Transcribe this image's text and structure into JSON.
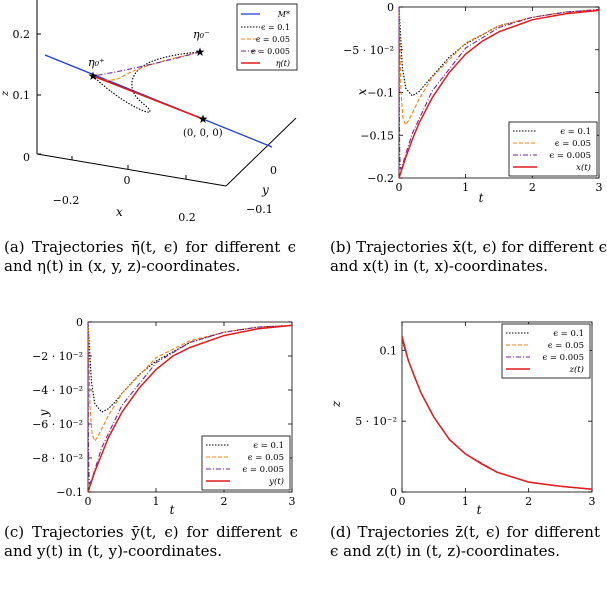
{
  "panels": {
    "a": {
      "caption": "(a) Trajectories η̄(t, ϵ) for different ϵ and η(t) in (x, y, z)-coordinates.",
      "labels": {
        "z": "z",
        "x": "x",
        "y": "y",
        "z_ticks": [
          "0",
          "0.1",
          "0.2"
        ],
        "x_ticks": [
          "−0.2",
          "0",
          "0.2"
        ],
        "y_ticks": [
          "0",
          "−0.1"
        ],
        "eta_plus": "η₀⁺",
        "eta_minus": "η₀⁻",
        "origin": "(0, 0, 0)"
      },
      "legend": [
        "M*",
        "ϵ = 0.1",
        "ϵ = 0.05",
        "ϵ = 0.005",
        "η(t)"
      ]
    },
    "b": {
      "caption": "(b) Trajectories x̄(t, ϵ) for different ϵ and x(t) in (t, x)-coordinates.",
      "xlabel": "t",
      "ylabel": "x",
      "legend": [
        "ϵ = 0.1",
        "ϵ = 0.05",
        "ϵ = 0.005",
        "x(t)"
      ],
      "x_ticks": [
        "0",
        "1",
        "2",
        "3"
      ],
      "y_ticks": [
        "0",
        "−5 · 10⁻²",
        "−0.1",
        "−0.15",
        "−0.2"
      ]
    },
    "c": {
      "caption": "(c) Trajectories ȳ(t, ϵ) for different ϵ and y(t) in (t, y)-coordinates.",
      "xlabel": "t",
      "ylabel": "y",
      "legend": [
        "ϵ = 0.1",
        "ϵ = 0.05",
        "ϵ = 0.005",
        "y(t)"
      ],
      "x_ticks": [
        "0",
        "1",
        "2",
        "3"
      ],
      "y_ticks": [
        "0",
        "−2 · 10⁻²",
        "−4 · 10⁻²",
        "−6 · 10⁻²",
        "−8 · 10⁻²",
        "−0.1"
      ]
    },
    "d": {
      "caption": "(d) Trajectories z̄(t, ϵ) for different ϵ and z(t) in (t, z)-coordinates.",
      "xlabel": "t",
      "ylabel": "z",
      "legend": [
        "ϵ = 0.1",
        "ϵ = 0.05",
        "ϵ = 0.005",
        "z(t)"
      ],
      "x_ticks": [
        "0",
        "1",
        "2",
        "3"
      ],
      "y_ticks": [
        "0",
        "5 · 10⁻²",
        "0.1"
      ]
    }
  },
  "series_colors": {
    "eps_0.1": "#000000",
    "eps_0.05": "#ff7f0e",
    "eps_0.005": "#7b1fa2",
    "exact": "#e31a1c",
    "manifold": "#1f3fd6"
  },
  "chart_data": [
    {
      "type": "line",
      "panel": "b",
      "xlabel": "t",
      "ylabel": "x",
      "xlim": [
        0,
        3
      ],
      "ylim": [
        -0.2,
        0
      ],
      "legend_position": "bottom-right",
      "series": [
        {
          "name": "ϵ = 0.1",
          "x": [
            0,
            0.05,
            0.1,
            0.2,
            0.3,
            0.4,
            0.5,
            0.75,
            1,
            1.5,
            2,
            2.5,
            3
          ],
          "y": [
            0,
            -0.07,
            -0.095,
            -0.104,
            -0.099,
            -0.09,
            -0.081,
            -0.059,
            -0.043,
            -0.022,
            -0.012,
            -0.006,
            -0.003
          ]
        },
        {
          "name": "ϵ = 0.05",
          "x": [
            0,
            0.03,
            0.06,
            0.1,
            0.15,
            0.2,
            0.3,
            0.5,
            1,
            1.5,
            2,
            2.5,
            3
          ],
          "y": [
            0,
            -0.1,
            -0.13,
            -0.138,
            -0.132,
            -0.124,
            -0.108,
            -0.082,
            -0.042,
            -0.022,
            -0.012,
            -0.006,
            -0.003
          ]
        },
        {
          "name": "ϵ = 0.005",
          "x": [
            0,
            0.005,
            0.01,
            0.02,
            0.05,
            0.1,
            0.2,
            0.5,
            1,
            1.5,
            2,
            2.5,
            3
          ],
          "y": [
            0,
            -0.12,
            -0.17,
            -0.19,
            -0.185,
            -0.172,
            -0.148,
            -0.098,
            -0.048,
            -0.024,
            -0.012,
            -0.006,
            -0.003
          ]
        },
        {
          "name": "x(t)",
          "x": [
            0,
            0.1,
            0.2,
            0.3,
            0.5,
            0.75,
            1,
            1.25,
            1.5,
            2,
            2.5,
            3
          ],
          "y": [
            -0.2,
            -0.176,
            -0.155,
            -0.136,
            -0.106,
            -0.077,
            -0.055,
            -0.04,
            -0.029,
            -0.015,
            -0.008,
            -0.004
          ]
        }
      ]
    },
    {
      "type": "line",
      "panel": "c",
      "xlabel": "t",
      "ylabel": "y",
      "xlim": [
        0,
        3
      ],
      "ylim": [
        -0.1,
        0
      ],
      "legend_position": "bottom-right",
      "series": [
        {
          "name": "ϵ = 0.1",
          "x": [
            0,
            0.05,
            0.1,
            0.2,
            0.3,
            0.4,
            0.5,
            0.75,
            1,
            1.5,
            2,
            2.5,
            3
          ],
          "y": [
            0,
            -0.035,
            -0.048,
            -0.053,
            -0.051,
            -0.047,
            -0.042,
            -0.031,
            -0.023,
            -0.012,
            -0.006,
            -0.003,
            -0.002
          ]
        },
        {
          "name": "ϵ = 0.05",
          "x": [
            0,
            0.03,
            0.06,
            0.1,
            0.15,
            0.2,
            0.3,
            0.5,
            1,
            1.5,
            2,
            2.5,
            3
          ],
          "y": [
            0,
            -0.05,
            -0.066,
            -0.07,
            -0.067,
            -0.063,
            -0.055,
            -0.042,
            -0.021,
            -0.011,
            -0.006,
            -0.003,
            -0.002
          ]
        },
        {
          "name": "ϵ = 0.005",
          "x": [
            0,
            0.005,
            0.01,
            0.02,
            0.05,
            0.1,
            0.2,
            0.5,
            1,
            1.5,
            2,
            2.5,
            3
          ],
          "y": [
            0,
            -0.06,
            -0.085,
            -0.095,
            -0.093,
            -0.087,
            -0.074,
            -0.049,
            -0.024,
            -0.012,
            -0.006,
            -0.003,
            -0.002
          ]
        },
        {
          "name": "y(t)",
          "x": [
            0,
            0.1,
            0.2,
            0.3,
            0.5,
            0.75,
            1,
            1.25,
            1.5,
            2,
            2.5,
            3
          ],
          "y": [
            -0.1,
            -0.088,
            -0.078,
            -0.068,
            -0.053,
            -0.039,
            -0.028,
            -0.02,
            -0.015,
            -0.008,
            -0.004,
            -0.002
          ]
        }
      ]
    },
    {
      "type": "line",
      "panel": "d",
      "xlabel": "t",
      "ylabel": "z",
      "xlim": [
        0,
        3
      ],
      "ylim": [
        0,
        0.12
      ],
      "legend_position": "top-right",
      "series": [
        {
          "name": "ϵ = 0.1",
          "x": [
            0,
            0.02,
            0.05,
            0.1,
            0.3,
            0.5,
            0.75,
            1,
            1.5,
            2,
            2.5,
            3
          ],
          "y": [
            0.11,
            0.104,
            0.1,
            0.093,
            0.07,
            0.053,
            0.037,
            0.027,
            0.014,
            0.007,
            0.004,
            0.002
          ]
        },
        {
          "name": "ϵ = 0.05",
          "x": [
            0,
            0.02,
            0.05,
            0.1,
            0.3,
            0.5,
            0.75,
            1,
            1.5,
            2,
            2.5,
            3
          ],
          "y": [
            0.11,
            0.105,
            0.1,
            0.093,
            0.07,
            0.053,
            0.037,
            0.027,
            0.014,
            0.007,
            0.004,
            0.002
          ]
        },
        {
          "name": "ϵ = 0.005",
          "x": [
            0,
            0.02,
            0.05,
            0.1,
            0.3,
            0.5,
            0.75,
            1,
            1.5,
            2,
            2.5,
            3
          ],
          "y": [
            0.11,
            0.106,
            0.1,
            0.093,
            0.07,
            0.053,
            0.037,
            0.027,
            0.014,
            0.007,
            0.004,
            0.002
          ]
        },
        {
          "name": "z(t)",
          "x": [
            0,
            0.1,
            0.2,
            0.3,
            0.5,
            0.75,
            1,
            1.25,
            1.5,
            2,
            2.5,
            3
          ],
          "y": [
            0.11,
            0.093,
            0.081,
            0.07,
            0.053,
            0.037,
            0.027,
            0.02,
            0.014,
            0.007,
            0.004,
            0.002
          ]
        }
      ]
    }
  ]
}
